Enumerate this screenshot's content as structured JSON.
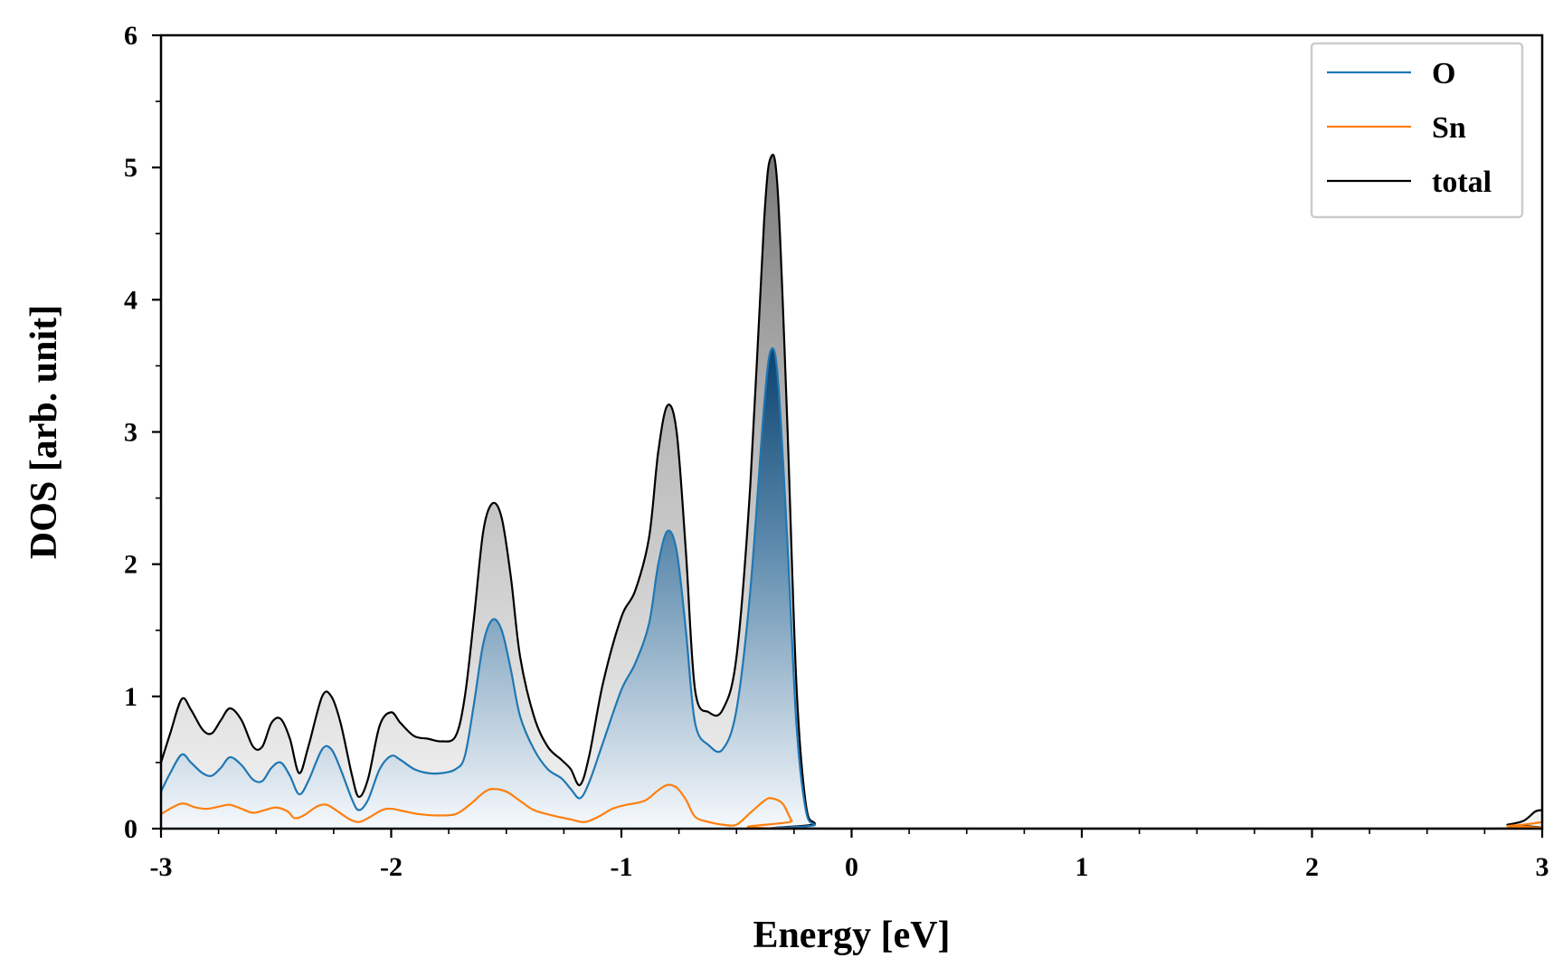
{
  "chart_data": {
    "type": "area",
    "title": "",
    "xlabel": "Energy [eV]",
    "ylabel": "DOS [arb. unit]",
    "xlim": [
      -3,
      3
    ],
    "ylim": [
      0,
      6
    ],
    "xticks": [
      -3,
      -2,
      -1,
      0,
      1,
      2,
      3
    ],
    "xtick_labels": [
      "-3",
      "-2",
      "-1",
      "0",
      "1",
      "2",
      "3"
    ],
    "yticks": [
      0,
      1,
      2,
      3,
      4,
      5,
      6
    ],
    "ytick_labels": [
      "0",
      "1",
      "2",
      "3",
      "4",
      "5",
      "6"
    ],
    "x_minor_step": 0.25,
    "y_minor_step": 0.5,
    "legend_position": "top-right",
    "series": [
      {
        "name": "O",
        "color": "#1f77b4",
        "fill": "gradient",
        "points": [
          [
            -3.0,
            0.28
          ],
          [
            -2.96,
            0.42
          ],
          [
            -2.91,
            0.56
          ],
          [
            -2.87,
            0.5
          ],
          [
            -2.82,
            0.42
          ],
          [
            -2.78,
            0.4
          ],
          [
            -2.74,
            0.46
          ],
          [
            -2.7,
            0.54
          ],
          [
            -2.65,
            0.48
          ],
          [
            -2.6,
            0.37
          ],
          [
            -2.56,
            0.36
          ],
          [
            -2.52,
            0.46
          ],
          [
            -2.48,
            0.5
          ],
          [
            -2.44,
            0.4
          ],
          [
            -2.4,
            0.26
          ],
          [
            -2.36,
            0.36
          ],
          [
            -2.3,
            0.6
          ],
          [
            -2.26,
            0.6
          ],
          [
            -2.22,
            0.45
          ],
          [
            -2.17,
            0.22
          ],
          [
            -2.14,
            0.14
          ],
          [
            -2.1,
            0.22
          ],
          [
            -2.05,
            0.45
          ],
          [
            -2.0,
            0.55
          ],
          [
            -1.96,
            0.52
          ],
          [
            -1.9,
            0.45
          ],
          [
            -1.84,
            0.42
          ],
          [
            -1.78,
            0.42
          ],
          [
            -1.72,
            0.45
          ],
          [
            -1.68,
            0.55
          ],
          [
            -1.64,
            0.95
          ],
          [
            -1.6,
            1.4
          ],
          [
            -1.56,
            1.58
          ],
          [
            -1.52,
            1.5
          ],
          [
            -1.48,
            1.2
          ],
          [
            -1.44,
            0.85
          ],
          [
            -1.38,
            0.6
          ],
          [
            -1.32,
            0.45
          ],
          [
            -1.26,
            0.38
          ],
          [
            -1.22,
            0.3
          ],
          [
            -1.18,
            0.23
          ],
          [
            -1.14,
            0.35
          ],
          [
            -1.08,
            0.65
          ],
          [
            -1.0,
            1.05
          ],
          [
            -0.94,
            1.25
          ],
          [
            -0.88,
            1.55
          ],
          [
            -0.84,
            2.0
          ],
          [
            -0.8,
            2.25
          ],
          [
            -0.76,
            2.1
          ],
          [
            -0.72,
            1.5
          ],
          [
            -0.68,
            0.8
          ],
          [
            -0.62,
            0.63
          ],
          [
            -0.56,
            0.6
          ],
          [
            -0.5,
            0.9
          ],
          [
            -0.44,
            1.8
          ],
          [
            -0.38,
            3.2
          ],
          [
            -0.35,
            3.62
          ],
          [
            -0.32,
            3.4
          ],
          [
            -0.28,
            2.2
          ],
          [
            -0.24,
            0.8
          ],
          [
            -0.2,
            0.15
          ],
          [
            -0.16,
            0.03
          ],
          [
            -0.1,
            0.0
          ],
          [
            3.0,
            0.0
          ]
        ]
      },
      {
        "name": "Sn",
        "color": "#ff7f0e",
        "fill": "none",
        "points": [
          [
            -3.0,
            0.11
          ],
          [
            -2.94,
            0.17
          ],
          [
            -2.9,
            0.19
          ],
          [
            -2.85,
            0.16
          ],
          [
            -2.8,
            0.15
          ],
          [
            -2.74,
            0.17
          ],
          [
            -2.7,
            0.18
          ],
          [
            -2.65,
            0.15
          ],
          [
            -2.6,
            0.12
          ],
          [
            -2.55,
            0.14
          ],
          [
            -2.5,
            0.16
          ],
          [
            -2.45,
            0.13
          ],
          [
            -2.42,
            0.08
          ],
          [
            -2.38,
            0.1
          ],
          [
            -2.32,
            0.17
          ],
          [
            -2.28,
            0.18
          ],
          [
            -2.24,
            0.14
          ],
          [
            -2.18,
            0.07
          ],
          [
            -2.14,
            0.05
          ],
          [
            -2.1,
            0.08
          ],
          [
            -2.04,
            0.14
          ],
          [
            -2.0,
            0.15
          ],
          [
            -1.94,
            0.13
          ],
          [
            -1.88,
            0.11
          ],
          [
            -1.8,
            0.1
          ],
          [
            -1.72,
            0.11
          ],
          [
            -1.66,
            0.18
          ],
          [
            -1.6,
            0.27
          ],
          [
            -1.56,
            0.3
          ],
          [
            -1.5,
            0.28
          ],
          [
            -1.44,
            0.21
          ],
          [
            -1.38,
            0.14
          ],
          [
            -1.3,
            0.1
          ],
          [
            -1.22,
            0.07
          ],
          [
            -1.16,
            0.05
          ],
          [
            -1.1,
            0.09
          ],
          [
            -1.04,
            0.15
          ],
          [
            -0.98,
            0.18
          ],
          [
            -0.9,
            0.21
          ],
          [
            -0.84,
            0.29
          ],
          [
            -0.8,
            0.33
          ],
          [
            -0.76,
            0.31
          ],
          [
            -0.72,
            0.22
          ],
          [
            -0.68,
            0.09
          ],
          [
            -0.62,
            0.05
          ],
          [
            -0.56,
            0.03
          ],
          [
            -0.5,
            0.03
          ],
          [
            -0.44,
            0.12
          ],
          [
            -0.38,
            0.21
          ],
          [
            -0.35,
            0.23
          ],
          [
            -0.3,
            0.19
          ],
          [
            -0.26,
            0.06
          ],
          [
            -0.22,
            0.0
          ],
          [
            2.75,
            0.0
          ],
          [
            2.85,
            0.02
          ],
          [
            2.92,
            0.03
          ],
          [
            3.0,
            0.05
          ]
        ]
      },
      {
        "name": "total",
        "color": "#000000",
        "fill": "gray-gradient",
        "points": [
          [
            -3.0,
            0.5
          ],
          [
            -2.96,
            0.72
          ],
          [
            -2.91,
            0.98
          ],
          [
            -2.87,
            0.9
          ],
          [
            -2.82,
            0.75
          ],
          [
            -2.78,
            0.72
          ],
          [
            -2.74,
            0.82
          ],
          [
            -2.7,
            0.91
          ],
          [
            -2.65,
            0.82
          ],
          [
            -2.6,
            0.62
          ],
          [
            -2.56,
            0.62
          ],
          [
            -2.52,
            0.8
          ],
          [
            -2.48,
            0.83
          ],
          [
            -2.44,
            0.68
          ],
          [
            -2.4,
            0.42
          ],
          [
            -2.36,
            0.62
          ],
          [
            -2.3,
            1.0
          ],
          [
            -2.26,
            1.0
          ],
          [
            -2.22,
            0.8
          ],
          [
            -2.17,
            0.4
          ],
          [
            -2.14,
            0.24
          ],
          [
            -2.1,
            0.38
          ],
          [
            -2.05,
            0.78
          ],
          [
            -2.0,
            0.88
          ],
          [
            -1.96,
            0.8
          ],
          [
            -1.9,
            0.7
          ],
          [
            -1.84,
            0.68
          ],
          [
            -1.78,
            0.66
          ],
          [
            -1.72,
            0.7
          ],
          [
            -1.68,
            1.0
          ],
          [
            -1.64,
            1.6
          ],
          [
            -1.6,
            2.25
          ],
          [
            -1.56,
            2.46
          ],
          [
            -1.52,
            2.35
          ],
          [
            -1.48,
            1.9
          ],
          [
            -1.44,
            1.3
          ],
          [
            -1.38,
            0.85
          ],
          [
            -1.32,
            0.62
          ],
          [
            -1.26,
            0.52
          ],
          [
            -1.22,
            0.45
          ],
          [
            -1.18,
            0.33
          ],
          [
            -1.14,
            0.55
          ],
          [
            -1.08,
            1.1
          ],
          [
            -1.0,
            1.6
          ],
          [
            -0.94,
            1.8
          ],
          [
            -0.88,
            2.2
          ],
          [
            -0.84,
            2.85
          ],
          [
            -0.8,
            3.2
          ],
          [
            -0.76,
            3.0
          ],
          [
            -0.72,
            2.1
          ],
          [
            -0.68,
            1.05
          ],
          [
            -0.62,
            0.88
          ],
          [
            -0.56,
            0.9
          ],
          [
            -0.5,
            1.3
          ],
          [
            -0.44,
            2.6
          ],
          [
            -0.38,
            4.6
          ],
          [
            -0.35,
            5.08
          ],
          [
            -0.32,
            4.8
          ],
          [
            -0.28,
            3.1
          ],
          [
            -0.24,
            1.1
          ],
          [
            -0.2,
            0.2
          ],
          [
            -0.16,
            0.04
          ],
          [
            -0.1,
            0.0
          ],
          [
            2.75,
            0.0
          ],
          [
            2.85,
            0.03
          ],
          [
            2.92,
            0.06
          ],
          [
            2.97,
            0.13
          ],
          [
            3.0,
            0.14
          ]
        ]
      }
    ]
  }
}
